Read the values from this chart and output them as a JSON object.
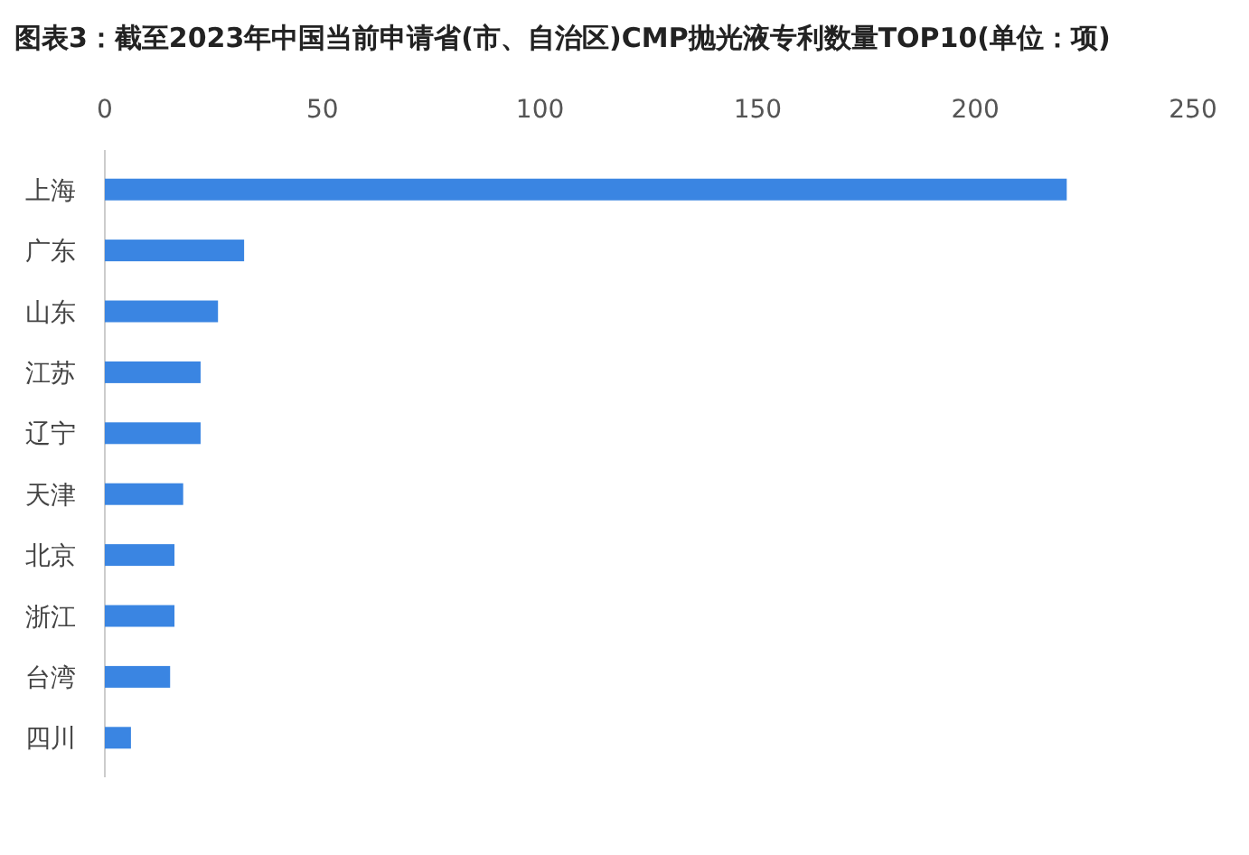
{
  "chart_data": {
    "type": "bar",
    "orientation": "horizontal",
    "title": "图表3：截至2023年中国当前申请省(市、自治区)CMP抛光液专利数量TOP10(单位：项)",
    "categories": [
      "上海",
      "广东",
      "山东",
      "江苏",
      "辽宁",
      "天津",
      "北京",
      "浙江",
      "台湾",
      "四川"
    ],
    "values": [
      221,
      32,
      26,
      22,
      22,
      18,
      16,
      16,
      15,
      6
    ],
    "color": "#3a85e2",
    "xlim": [
      0,
      250
    ],
    "xticks": [
      0,
      50,
      100,
      150,
      200,
      250
    ]
  }
}
